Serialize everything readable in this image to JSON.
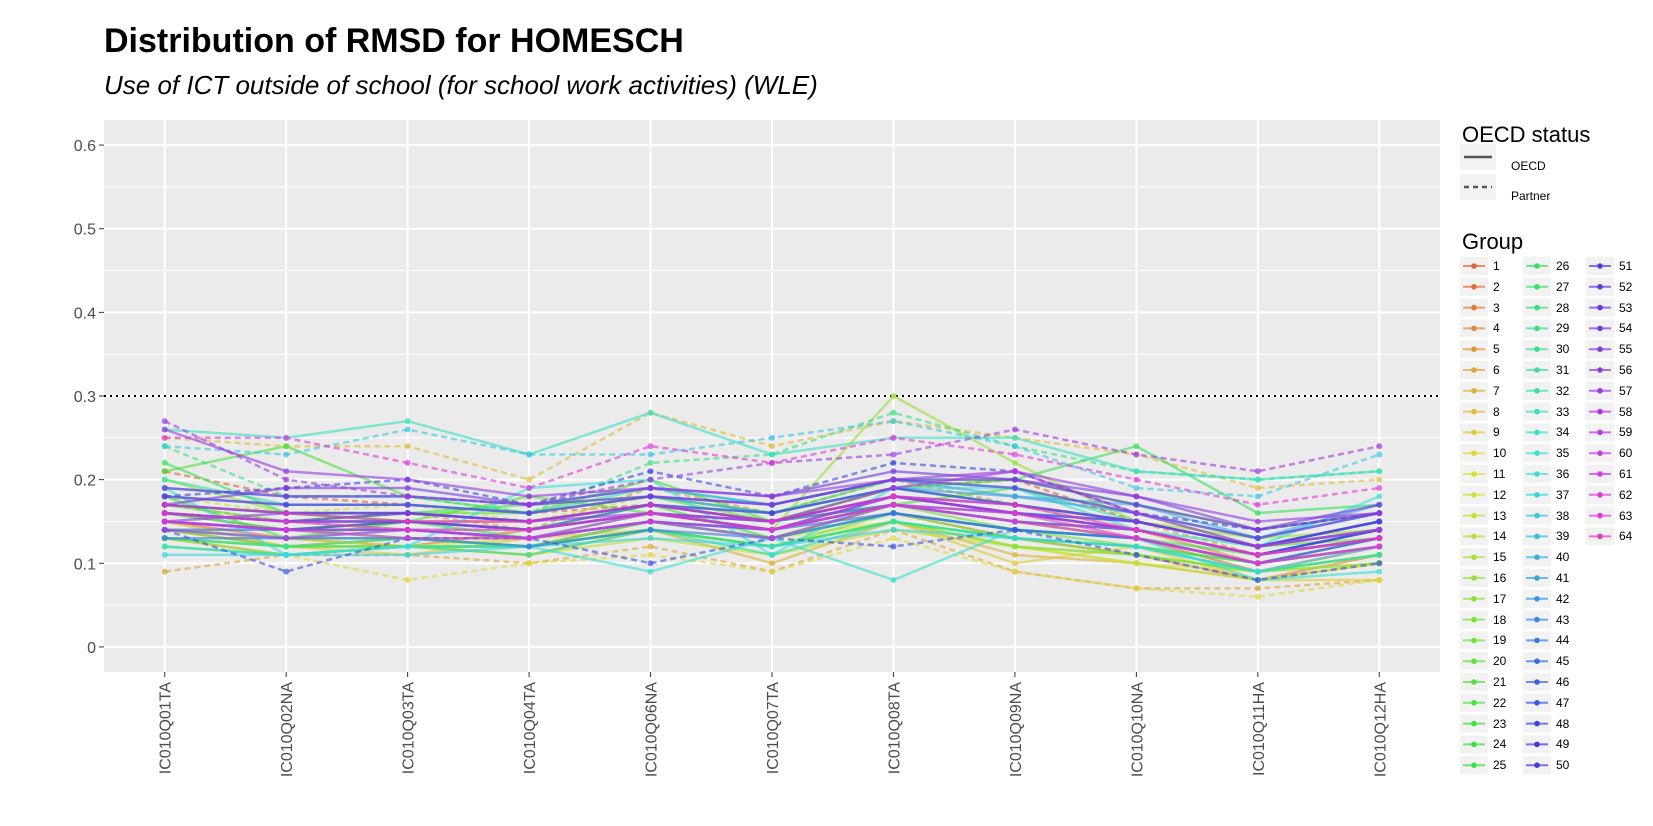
{
  "title": "Distribution of RMSD for HOMESCH",
  "subtitle": "Use of ICT outside of school (for school work activities) (WLE)",
  "legend": {
    "status_title": "OECD status",
    "status_items": [
      "OECD",
      "Partner"
    ],
    "group_title": "Group"
  },
  "chart_data": {
    "type": "line",
    "title": "Distribution of RMSD for HOMESCH",
    "subtitle": "Use of ICT outside of school (for school work activities) (WLE)",
    "xlabel": "",
    "ylabel": "",
    "categories": [
      "IC010Q01TA",
      "IC010Q02NA",
      "IC010Q03TA",
      "IC010Q04TA",
      "IC010Q06NA",
      "IC010Q07TA",
      "IC010Q08TA",
      "IC010Q09NA",
      "IC010Q10NA",
      "IC010Q11HA",
      "IC010Q12HA"
    ],
    "yticks": [
      0,
      0.1,
      0.2,
      0.3,
      0.4,
      0.5,
      0.6
    ],
    "ytick_labels": [
      "0",
      "0.1",
      "0.2",
      "0.3",
      "0.4",
      "0.5",
      "0.6"
    ],
    "ylim": [
      -0.03,
      0.63
    ],
    "reference_line": 0.3,
    "grid": true,
    "legend_position": "right",
    "series": [
      {
        "name": "1",
        "status": "Partner",
        "values": [
          0.21,
          0.18,
          0.17,
          0.16,
          0.17,
          0.15,
          0.19,
          0.2,
          0.15,
          0.12,
          0.15
        ]
      },
      {
        "name": "2",
        "status": "OECD",
        "values": [
          0.15,
          0.13,
          0.12,
          0.14,
          0.16,
          0.14,
          0.17,
          0.15,
          0.13,
          0.09,
          0.12
        ]
      },
      {
        "name": "3",
        "status": "OECD",
        "values": [
          0.14,
          0.12,
          0.13,
          0.12,
          0.15,
          0.13,
          0.16,
          0.13,
          0.11,
          0.08,
          0.11
        ]
      },
      {
        "name": "4",
        "status": "OECD",
        "values": [
          0.16,
          0.14,
          0.15,
          0.15,
          0.17,
          0.15,
          0.18,
          0.16,
          0.14,
          0.1,
          0.13
        ]
      },
      {
        "name": "5",
        "status": "Partner",
        "values": [
          0.17,
          0.15,
          0.16,
          0.14,
          0.19,
          0.16,
          0.2,
          0.17,
          0.15,
          0.11,
          0.14
        ]
      },
      {
        "name": "6",
        "status": "Partner",
        "values": [
          0.09,
          0.11,
          0.11,
          0.1,
          0.12,
          0.09,
          0.14,
          0.09,
          0.07,
          0.07,
          0.08
        ]
      },
      {
        "name": "7",
        "status": "OECD",
        "values": [
          0.13,
          0.11,
          0.12,
          0.11,
          0.14,
          0.1,
          0.15,
          0.11,
          0.1,
          0.08,
          0.1
        ]
      },
      {
        "name": "8",
        "status": "Partner",
        "values": [
          0.25,
          0.24,
          0.24,
          0.2,
          0.28,
          0.24,
          0.27,
          0.25,
          0.23,
          0.19,
          0.2
        ]
      },
      {
        "name": "9",
        "status": "OECD",
        "values": [
          0.15,
          0.12,
          0.11,
          0.13,
          0.14,
          0.12,
          0.15,
          0.1,
          0.12,
          0.08,
          0.08
        ]
      },
      {
        "name": "10",
        "status": "Partner",
        "values": [
          0.12,
          0.11,
          0.08,
          0.1,
          0.11,
          0.09,
          0.13,
          0.09,
          0.07,
          0.06,
          0.08
        ]
      },
      {
        "name": "11",
        "status": "OECD",
        "values": [
          0.14,
          0.13,
          0.12,
          0.13,
          0.15,
          0.13,
          0.15,
          0.12,
          0.1,
          0.09,
          0.1
        ]
      },
      {
        "name": "12",
        "status": "Partner",
        "values": [
          0.18,
          0.16,
          0.17,
          0.15,
          0.18,
          0.16,
          0.19,
          0.17,
          0.14,
          0.12,
          0.14
        ]
      },
      {
        "name": "13",
        "status": "OECD",
        "values": [
          0.12,
          0.11,
          0.12,
          0.11,
          0.13,
          0.11,
          0.14,
          0.12,
          0.1,
          0.08,
          0.1
        ]
      },
      {
        "name": "14",
        "status": "OECD",
        "values": [
          0.13,
          0.12,
          0.13,
          0.12,
          0.14,
          0.12,
          0.15,
          0.12,
          0.11,
          0.09,
          0.11
        ]
      },
      {
        "name": "15",
        "status": "Partner",
        "values": [
          0.16,
          0.15,
          0.14,
          0.14,
          0.16,
          0.14,
          0.17,
          0.15,
          0.13,
          0.1,
          0.12
        ]
      },
      {
        "name": "16",
        "status": "OECD",
        "values": [
          0.2,
          0.16,
          0.15,
          0.14,
          0.16,
          0.14,
          0.3,
          0.22,
          0.15,
          0.13,
          0.14
        ]
      },
      {
        "name": "17",
        "status": "OECD",
        "values": [
          0.13,
          0.11,
          0.12,
          0.12,
          0.14,
          0.12,
          0.15,
          0.12,
          0.11,
          0.09,
          0.11
        ]
      },
      {
        "name": "18",
        "status": "OECD",
        "values": [
          0.14,
          0.12,
          0.12,
          0.12,
          0.14,
          0.12,
          0.16,
          0.13,
          0.11,
          0.09,
          0.1
        ]
      },
      {
        "name": "19",
        "status": "OECD",
        "values": [
          0.15,
          0.14,
          0.13,
          0.13,
          0.15,
          0.13,
          0.17,
          0.14,
          0.12,
          0.1,
          0.12
        ]
      },
      {
        "name": "20",
        "status": "OECD",
        "values": [
          0.17,
          0.15,
          0.16,
          0.16,
          0.18,
          0.15,
          0.19,
          0.17,
          0.15,
          0.12,
          0.14
        ]
      },
      {
        "name": "21",
        "status": "OECD",
        "values": [
          0.17,
          0.16,
          0.15,
          0.18,
          0.16,
          0.15,
          0.17,
          0.19,
          0.16,
          0.12,
          0.13
        ]
      },
      {
        "name": "22",
        "status": "OECD",
        "values": [
          0.21,
          0.24,
          0.18,
          0.16,
          0.2,
          0.15,
          0.19,
          0.2,
          0.17,
          0.14,
          0.16
        ]
      },
      {
        "name": "23",
        "status": "OECD",
        "values": [
          0.18,
          0.13,
          0.15,
          0.14,
          0.17,
          0.13,
          0.17,
          0.15,
          0.14,
          0.11,
          0.13
        ]
      },
      {
        "name": "24",
        "status": "OECD",
        "values": [
          0.13,
          0.12,
          0.12,
          0.12,
          0.14,
          0.12,
          0.15,
          0.13,
          0.12,
          0.1,
          0.12
        ]
      },
      {
        "name": "25",
        "status": "OECD",
        "values": [
          0.16,
          0.14,
          0.15,
          0.13,
          0.15,
          0.13,
          0.16,
          0.14,
          0.13,
          0.11,
          0.13
        ]
      },
      {
        "name": "26",
        "status": "OECD",
        "values": [
          0.22,
          0.16,
          0.16,
          0.17,
          0.18,
          0.16,
          0.2,
          0.2,
          0.24,
          0.16,
          0.17
        ]
      },
      {
        "name": "27",
        "status": "OECD",
        "values": [
          0.14,
          0.13,
          0.13,
          0.12,
          0.15,
          0.13,
          0.16,
          0.14,
          0.13,
          0.1,
          0.12
        ]
      },
      {
        "name": "28",
        "status": "OECD",
        "values": [
          0.15,
          0.14,
          0.14,
          0.13,
          0.16,
          0.14,
          0.17,
          0.15,
          0.14,
          0.11,
          0.13
        ]
      },
      {
        "name": "29",
        "status": "Partner",
        "values": [
          0.24,
          0.18,
          0.18,
          0.16,
          0.22,
          0.23,
          0.28,
          0.24,
          0.21,
          0.2,
          0.21
        ]
      },
      {
        "name": "30",
        "status": "OECD",
        "values": [
          0.12,
          0.11,
          0.12,
          0.11,
          0.14,
          0.11,
          0.15,
          0.13,
          0.12,
          0.09,
          0.11
        ]
      },
      {
        "name": "31",
        "status": "OECD",
        "values": [
          0.13,
          0.12,
          0.13,
          0.12,
          0.14,
          0.12,
          0.15,
          0.13,
          0.12,
          0.09,
          0.11
        ]
      },
      {
        "name": "32",
        "status": "OECD",
        "values": [
          0.2,
          0.17,
          0.17,
          0.16,
          0.19,
          0.17,
          0.2,
          0.19,
          0.15,
          0.12,
          0.14
        ]
      },
      {
        "name": "33",
        "status": "OECD",
        "values": [
          0.14,
          0.13,
          0.14,
          0.13,
          0.15,
          0.13,
          0.16,
          0.14,
          0.13,
          0.1,
          0.12
        ]
      },
      {
        "name": "34",
        "status": "OECD",
        "values": [
          0.26,
          0.25,
          0.27,
          0.23,
          0.28,
          0.23,
          0.25,
          0.25,
          0.21,
          0.2,
          0.21
        ]
      },
      {
        "name": "35",
        "status": "OECD",
        "values": [
          0.12,
          0.11,
          0.12,
          0.12,
          0.09,
          0.13,
          0.08,
          0.14,
          0.13,
          0.08,
          0.09
        ]
      },
      {
        "name": "36",
        "status": "OECD",
        "values": [
          0.19,
          0.11,
          0.12,
          0.19,
          0.2,
          0.11,
          0.19,
          0.19,
          0.14,
          0.12,
          0.18
        ]
      },
      {
        "name": "37",
        "status": "OECD",
        "values": [
          0.11,
          0.11,
          0.11,
          0.12,
          0.13,
          0.12,
          0.14,
          0.13,
          0.12,
          0.09,
          0.12
        ]
      },
      {
        "name": "38",
        "status": "Partner",
        "values": [
          0.24,
          0.23,
          0.26,
          0.23,
          0.23,
          0.25,
          0.27,
          0.24,
          0.19,
          0.18,
          0.23
        ]
      },
      {
        "name": "39",
        "status": "OECD",
        "values": [
          0.17,
          0.16,
          0.16,
          0.15,
          0.17,
          0.16,
          0.19,
          0.17,
          0.15,
          0.12,
          0.15
        ]
      },
      {
        "name": "40",
        "status": "OECD",
        "values": [
          0.19,
          0.18,
          0.18,
          0.17,
          0.19,
          0.17,
          0.2,
          0.18,
          0.17,
          0.13,
          0.17
        ]
      },
      {
        "name": "41",
        "status": "OECD",
        "values": [
          0.18,
          0.17,
          0.17,
          0.16,
          0.18,
          0.16,
          0.19,
          0.18,
          0.16,
          0.13,
          0.16
        ]
      },
      {
        "name": "42",
        "status": "OECD",
        "values": [
          0.16,
          0.15,
          0.15,
          0.14,
          0.16,
          0.15,
          0.18,
          0.16,
          0.15,
          0.12,
          0.15
        ]
      },
      {
        "name": "43",
        "status": "OECD",
        "values": [
          0.15,
          0.14,
          0.14,
          0.13,
          0.15,
          0.14,
          0.17,
          0.15,
          0.14,
          0.11,
          0.14
        ]
      },
      {
        "name": "44",
        "status": "OECD",
        "values": [
          0.13,
          0.13,
          0.13,
          0.12,
          0.14,
          0.13,
          0.16,
          0.14,
          0.13,
          0.1,
          0.13
        ]
      },
      {
        "name": "45",
        "status": "OECD",
        "values": [
          0.14,
          0.14,
          0.14,
          0.13,
          0.15,
          0.14,
          0.16,
          0.14,
          0.13,
          0.1,
          0.13
        ]
      },
      {
        "name": "46",
        "status": "OECD",
        "values": [
          0.16,
          0.15,
          0.15,
          0.14,
          0.17,
          0.15,
          0.17,
          0.16,
          0.14,
          0.11,
          0.14
        ]
      },
      {
        "name": "47",
        "status": "Partner",
        "values": [
          0.14,
          0.09,
          0.13,
          0.13,
          0.1,
          0.13,
          0.12,
          0.14,
          0.11,
          0.08,
          0.1
        ]
      },
      {
        "name": "48",
        "status": "Partner",
        "values": [
          0.18,
          0.19,
          0.2,
          0.17,
          0.21,
          0.18,
          0.22,
          0.21,
          0.16,
          0.14,
          0.16
        ]
      },
      {
        "name": "49",
        "status": "OECD",
        "values": [
          0.15,
          0.14,
          0.15,
          0.14,
          0.16,
          0.14,
          0.18,
          0.16,
          0.14,
          0.11,
          0.14
        ]
      },
      {
        "name": "50",
        "status": "OECD",
        "values": [
          0.17,
          0.16,
          0.16,
          0.15,
          0.17,
          0.16,
          0.19,
          0.17,
          0.15,
          0.12,
          0.15
        ]
      },
      {
        "name": "51",
        "status": "OECD",
        "values": [
          0.16,
          0.15,
          0.16,
          0.15,
          0.17,
          0.15,
          0.18,
          0.16,
          0.15,
          0.12,
          0.15
        ]
      },
      {
        "name": "52",
        "status": "OECD",
        "values": [
          0.18,
          0.17,
          0.17,
          0.16,
          0.18,
          0.17,
          0.2,
          0.19,
          0.16,
          0.13,
          0.16
        ]
      },
      {
        "name": "53",
        "status": "OECD",
        "values": [
          0.19,
          0.18,
          0.18,
          0.17,
          0.19,
          0.18,
          0.21,
          0.2,
          0.17,
          0.14,
          0.17
        ]
      },
      {
        "name": "54",
        "status": "OECD",
        "values": [
          0.17,
          0.19,
          0.19,
          0.17,
          0.18,
          0.17,
          0.2,
          0.2,
          0.18,
          0.14,
          0.16
        ]
      },
      {
        "name": "55",
        "status": "OECD",
        "values": [
          0.15,
          0.16,
          0.16,
          0.15,
          0.16,
          0.15,
          0.18,
          0.17,
          0.15,
          0.12,
          0.14
        ]
      },
      {
        "name": "56",
        "status": "OECD",
        "values": [
          0.26,
          0.21,
          0.2,
          0.18,
          0.19,
          0.18,
          0.2,
          0.21,
          0.18,
          0.15,
          0.16
        ]
      },
      {
        "name": "57",
        "status": "Partner",
        "values": [
          0.27,
          0.2,
          0.18,
          0.17,
          0.2,
          0.22,
          0.23,
          0.26,
          0.23,
          0.21,
          0.24
        ]
      },
      {
        "name": "58",
        "status": "OECD",
        "values": [
          0.16,
          0.15,
          0.15,
          0.14,
          0.16,
          0.15,
          0.19,
          0.21,
          0.16,
          0.12,
          0.14
        ]
      },
      {
        "name": "59",
        "status": "OECD",
        "values": [
          0.14,
          0.13,
          0.14,
          0.13,
          0.15,
          0.14,
          0.17,
          0.15,
          0.14,
          0.11,
          0.13
        ]
      },
      {
        "name": "60",
        "status": "OECD",
        "values": [
          0.15,
          0.14,
          0.14,
          0.13,
          0.16,
          0.14,
          0.18,
          0.16,
          0.14,
          0.11,
          0.13
        ]
      },
      {
        "name": "61",
        "status": "OECD",
        "values": [
          0.15,
          0.14,
          0.13,
          0.13,
          0.15,
          0.13,
          0.17,
          0.15,
          0.13,
          0.1,
          0.12
        ]
      },
      {
        "name": "62",
        "status": "Partner",
        "values": [
          0.25,
          0.25,
          0.22,
          0.19,
          0.24,
          0.22,
          0.25,
          0.23,
          0.2,
          0.17,
          0.19
        ]
      },
      {
        "name": "63",
        "status": "OECD",
        "values": [
          0.16,
          0.15,
          0.14,
          0.14,
          0.16,
          0.14,
          0.17,
          0.16,
          0.13,
          0.1,
          0.12
        ]
      },
      {
        "name": "64",
        "status": "OECD",
        "values": [
          0.17,
          0.16,
          0.15,
          0.15,
          0.17,
          0.15,
          0.18,
          0.17,
          0.14,
          0.11,
          0.13
        ]
      }
    ]
  }
}
